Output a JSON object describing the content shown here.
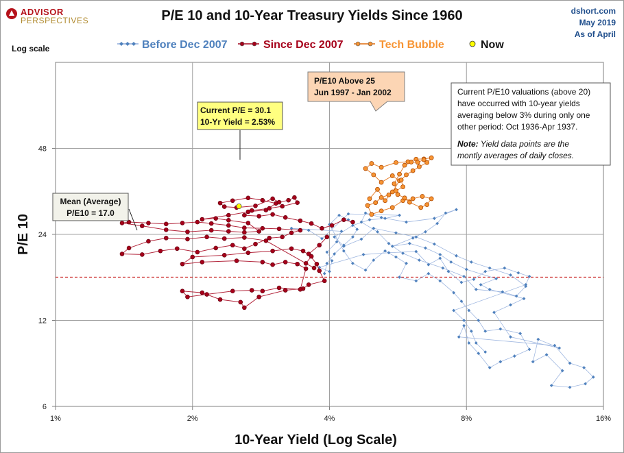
{
  "brand": {
    "line1": "ADVISOR",
    "line2": "PERSPECTIVES"
  },
  "title": "P/E 10 and 10-Year Treasury Yields Since 1960",
  "source": {
    "site": "dshort.com",
    "date": "May 2019",
    "asof": "As of April"
  },
  "scale_note": "Log scale",
  "colors": {
    "before": "#4f81bd",
    "since": "#a6001a",
    "bubble": "#f79433",
    "now": "#ffff00",
    "mean": "#c00000",
    "grid": "#a0a0a0"
  },
  "chart_data": {
    "type": "scatter",
    "title": "P/E 10 and 10-Year Treasury Yields Since 1960",
    "xlabel": "10-Year Yield (Log Scale)",
    "ylabel": "P/E 10",
    "x_scale": "log",
    "y_scale": "log",
    "xlim": [
      1,
      16
    ],
    "ylim": [
      6,
      96
    ],
    "x_ticks": [
      1,
      2,
      4,
      8,
      16
    ],
    "x_tick_labels": [
      "1%",
      "2%",
      "4%",
      "8%",
      "16%"
    ],
    "y_ticks": [
      6,
      12,
      24,
      48
    ],
    "y_tick_labels": [
      "6",
      "12",
      "24",
      "48"
    ],
    "grid": true,
    "legend_position": "top",
    "series": [
      {
        "name": "Before Dec 2007",
        "color": "#4f81bd",
        "marker": "diamond",
        "points": [
          [
            3.9,
            17.5
          ],
          [
            3.95,
            19
          ],
          [
            4.1,
            20.5
          ],
          [
            4.3,
            22
          ],
          [
            4.5,
            23.5
          ],
          [
            4.6,
            25
          ],
          [
            4.4,
            27
          ],
          [
            4.2,
            28
          ],
          [
            4.0,
            26
          ],
          [
            4.3,
            21
          ],
          [
            4.5,
            19
          ],
          [
            4.8,
            18
          ],
          [
            5.0,
            19.5
          ],
          [
            5.3,
            21
          ],
          [
            5.6,
            20
          ],
          [
            5.9,
            19
          ],
          [
            5.7,
            17
          ],
          [
            6.2,
            16.5
          ],
          [
            6.6,
            17.5
          ],
          [
            7.0,
            16.5
          ],
          [
            7.5,
            15
          ],
          [
            7.8,
            14
          ],
          [
            8.1,
            13
          ],
          [
            8.5,
            12
          ],
          [
            8.8,
            11
          ],
          [
            9.5,
            11.2
          ],
          [
            10.5,
            10.8
          ],
          [
            11,
            9.5
          ],
          [
            10.2,
            9
          ],
          [
            9.5,
            8.6
          ],
          [
            9.0,
            8.2
          ],
          [
            8.5,
            9.2
          ],
          [
            8.1,
            10
          ],
          [
            7.9,
            11.5
          ],
          [
            7.7,
            10.5
          ],
          [
            12.5,
            9.8
          ],
          [
            13.5,
            8.5
          ],
          [
            14.5,
            8.2
          ],
          [
            15.2,
            7.6
          ],
          [
            14.6,
            7.2
          ],
          [
            13.5,
            7.0
          ],
          [
            12.3,
            7.1
          ],
          [
            13.0,
            8.0
          ],
          [
            12.0,
            9.1
          ],
          [
            11.2,
            8.6
          ],
          [
            11.5,
            10.3
          ],
          [
            12.8,
            9.6
          ],
          [
            10.0,
            10.5
          ],
          [
            9.2,
            12.8
          ],
          [
            10.0,
            13.6
          ],
          [
            10.7,
            14.3
          ],
          [
            9.0,
            15.4
          ],
          [
            8.6,
            16
          ],
          [
            9.3,
            16.8
          ],
          [
            8.0,
            18.1
          ],
          [
            7.4,
            19.2
          ],
          [
            7.0,
            20.4
          ],
          [
            6.5,
            21.5
          ],
          [
            6.0,
            22.3
          ],
          [
            5.5,
            21.8
          ],
          [
            6.1,
            23.3
          ],
          [
            6.5,
            24.5
          ],
          [
            6.9,
            26.2
          ],
          [
            7.2,
            28.5
          ],
          [
            7.6,
            29.3
          ],
          [
            6.8,
            27.3
          ],
          [
            5.9,
            26.5
          ],
          [
            5.2,
            27.5
          ],
          [
            4.8,
            28.5
          ],
          [
            4.7,
            26.5
          ],
          [
            5.1,
            24.5
          ],
          [
            5.4,
            22.3
          ],
          [
            5.8,
            20.6
          ],
          [
            6.3,
            19.5
          ],
          [
            7.1,
            18.3
          ],
          [
            7.9,
            17.1
          ],
          [
            8.4,
            15.4
          ],
          [
            9.6,
            15.1
          ],
          [
            10.3,
            14.6
          ],
          [
            10.8,
            15.8
          ],
          [
            10.0,
            17.3
          ],
          [
            9.0,
            18.3
          ],
          [
            8.2,
            19.2
          ],
          [
            7.6,
            20.2
          ],
          [
            6.8,
            22.2
          ],
          [
            6.2,
            23.5
          ],
          [
            5.6,
            24.3
          ],
          [
            5.0,
            25.2
          ],
          [
            4.7,
            23.1
          ],
          [
            4.3,
            21.8
          ],
          [
            4.1,
            23.5
          ],
          [
            4.5,
            25.8
          ],
          [
            4.9,
            27.0
          ],
          [
            5.3,
            27.3
          ],
          [
            5.7,
            28.0
          ],
          [
            4.4,
            28.3
          ],
          [
            3.85,
            23.2
          ],
          [
            3.6,
            24.8
          ],
          [
            3.3,
            25.2
          ],
          [
            4.25,
            24.6
          ],
          [
            4.15,
            22.6
          ],
          [
            3.95,
            20.8
          ],
          [
            4.05,
            19.4
          ],
          [
            4.0,
            17.8
          ],
          [
            3.8,
            18.4
          ],
          [
            4.75,
            20.4
          ],
          [
            5.4,
            20.7
          ],
          [
            6.2,
            20.9
          ],
          [
            6.6,
            18.8
          ],
          [
            7.0,
            19.8
          ],
          [
            7.3,
            17.8
          ],
          [
            7.8,
            16.3
          ],
          [
            8.3,
            16.7
          ],
          [
            8.8,
            17.8
          ],
          [
            9.7,
            18.3
          ],
          [
            10.4,
            17.6
          ],
          [
            11.0,
            17.1
          ],
          [
            10.8,
            16.0
          ],
          [
            7.5,
            13.0
          ],
          [
            7.9,
            12.0
          ],
          [
            8.2,
            11.0
          ],
          [
            8.4,
            10.0
          ],
          [
            8.8,
            9.3
          ]
        ]
      },
      {
        "name": "Since Dec 2007",
        "color": "#a6001a",
        "marker": "circle",
        "points": [
          [
            3.95,
            23.5
          ],
          [
            3.8,
            22
          ],
          [
            3.6,
            20.5
          ],
          [
            3.75,
            18.9
          ],
          [
            3.8,
            17.9
          ],
          [
            3.9,
            16.5
          ],
          [
            3.6,
            16.0
          ],
          [
            3.5,
            15.5
          ],
          [
            3.2,
            15.3
          ],
          [
            2.8,
            14.5
          ],
          [
            2.6,
            13.3
          ],
          [
            2.55,
            13.9
          ],
          [
            2.3,
            14.2
          ],
          [
            2.1,
            15.0
          ],
          [
            1.9,
            15.2
          ],
          [
            1.95,
            14.5
          ],
          [
            2.15,
            14.8
          ],
          [
            2.45,
            15.2
          ],
          [
            2.7,
            15.3
          ],
          [
            2.85,
            15.2
          ],
          [
            3.1,
            15.6
          ],
          [
            3.45,
            15.4
          ],
          [
            3.55,
            18.2
          ],
          [
            3.4,
            18.9
          ],
          [
            3.2,
            19.2
          ],
          [
            3.0,
            18.8
          ],
          [
            2.85,
            19.2
          ],
          [
            2.5,
            19.4
          ],
          [
            2.1,
            19.2
          ],
          [
            1.9,
            18.9
          ],
          [
            2.0,
            20.0
          ],
          [
            2.35,
            20.3
          ],
          [
            2.65,
            20.7
          ],
          [
            3.0,
            21.0
          ],
          [
            3.3,
            21.4
          ],
          [
            3.5,
            21.0
          ],
          [
            3.65,
            20.1
          ],
          [
            3.55,
            19.0
          ],
          [
            3.7,
            18.3
          ],
          [
            2.9,
            22.8
          ],
          [
            2.6,
            23.4
          ],
          [
            2.35,
            23.2
          ],
          [
            2.15,
            23.5
          ],
          [
            1.95,
            23.1
          ],
          [
            1.75,
            23.3
          ],
          [
            1.6,
            22.7
          ],
          [
            1.45,
            21.5
          ],
          [
            1.4,
            20.5
          ],
          [
            1.55,
            20.4
          ],
          [
            1.7,
            21.0
          ],
          [
            1.85,
            21.4
          ],
          [
            2.05,
            20.8
          ],
          [
            2.25,
            21.5
          ],
          [
            2.45,
            22.0
          ],
          [
            2.6,
            21.4
          ],
          [
            2.75,
            22.2
          ],
          [
            2.95,
            23.3
          ],
          [
            3.15,
            23.5
          ],
          [
            3.3,
            24.3
          ],
          [
            3.45,
            24.8
          ],
          [
            3.1,
            25.1
          ],
          [
            2.85,
            25.2
          ],
          [
            2.6,
            25.3
          ],
          [
            2.4,
            25.8
          ],
          [
            2.2,
            26.2
          ],
          [
            2.05,
            26.5
          ],
          [
            1.9,
            26.3
          ],
          [
            1.75,
            26.1
          ],
          [
            1.6,
            26.3
          ],
          [
            1.45,
            26.5
          ],
          [
            1.4,
            26.3
          ],
          [
            1.55,
            25.7
          ],
          [
            1.75,
            24.9
          ],
          [
            1.95,
            24.5
          ],
          [
            2.2,
            24.8
          ],
          [
            2.4,
            24.6
          ],
          [
            2.6,
            24.4
          ],
          [
            2.8,
            24.6
          ],
          [
            2.65,
            26.3
          ],
          [
            2.4,
            26.9
          ],
          [
            2.25,
            27.3
          ],
          [
            2.1,
            27.1
          ],
          [
            2.4,
            28.0
          ],
          [
            2.65,
            28.8
          ],
          [
            2.9,
            29.2
          ],
          [
            3.05,
            30.8
          ],
          [
            2.85,
            31.6
          ],
          [
            2.65,
            32.2
          ],
          [
            2.45,
            31.5
          ],
          [
            2.3,
            30.9
          ],
          [
            2.35,
            30.0
          ],
          [
            2.5,
            29.8
          ],
          [
            2.75,
            30.2
          ],
          [
            3.0,
            32.0
          ],
          [
            3.1,
            31.1
          ],
          [
            3.25,
            31.6
          ],
          [
            3.35,
            32.3
          ],
          [
            3.4,
            31.0
          ],
          [
            3.15,
            30.1
          ],
          [
            2.95,
            29.6
          ],
          [
            2.7,
            29.1
          ],
          [
            2.6,
            28.0
          ],
          [
            2.8,
            27.8
          ],
          [
            3.0,
            28.2
          ],
          [
            3.2,
            27.5
          ],
          [
            3.45,
            26.8
          ],
          [
            3.65,
            26.2
          ],
          [
            3.85,
            25.2
          ],
          [
            4.05,
            25.8
          ],
          [
            4.3,
            27.0
          ],
          [
            4.5,
            26.5
          ]
        ]
      },
      {
        "name": "Tech Bubble",
        "color": "#f79433",
        "marker": "circle",
        "points": [
          [
            4.9,
            32.0
          ],
          [
            5.1,
            34.5
          ],
          [
            5.3,
            31.5
          ],
          [
            5.5,
            33.8
          ],
          [
            5.7,
            37.0
          ],
          [
            5.5,
            38.5
          ],
          [
            5.2,
            36.5
          ],
          [
            5.0,
            38.8
          ],
          [
            4.8,
            40.8
          ],
          [
            4.95,
            42.5
          ],
          [
            5.2,
            41.2
          ],
          [
            5.6,
            42.8
          ],
          [
            5.95,
            43.1
          ],
          [
            6.2,
            44.0
          ],
          [
            6.45,
            44.1
          ],
          [
            6.7,
            44.5
          ],
          [
            6.55,
            42.8
          ],
          [
            6.3,
            41.4
          ],
          [
            6.1,
            40.1
          ],
          [
            5.9,
            38.8
          ],
          [
            5.75,
            37.2
          ],
          [
            5.8,
            35.2
          ],
          [
            5.6,
            34.1
          ],
          [
            5.4,
            33.0
          ],
          [
            5.2,
            32.3
          ],
          [
            5.05,
            31.0
          ],
          [
            4.85,
            30.3
          ],
          [
            4.95,
            28.2
          ],
          [
            5.2,
            29.0
          ],
          [
            5.5,
            29.8
          ],
          [
            5.8,
            31.5
          ],
          [
            6.1,
            32.0
          ],
          [
            6.4,
            32.6
          ],
          [
            6.7,
            32.0
          ],
          [
            6.55,
            30.5
          ],
          [
            6.35,
            29.8
          ],
          [
            6.0,
            31.1
          ],
          [
            5.85,
            32.2
          ],
          [
            5.65,
            33.1
          ],
          [
            5.55,
            36.1
          ],
          [
            5.7,
            39.0
          ],
          [
            5.85,
            41.9
          ],
          [
            6.05,
            43.0
          ],
          [
            6.25,
            42.9
          ],
          [
            6.45,
            43.8
          ]
        ]
      },
      {
        "name": "Now",
        "color": "#ffff00",
        "marker": "circle",
        "points": [
          [
            2.53,
            30.1
          ]
        ]
      }
    ],
    "reference_lines": [
      {
        "name": "Mean (Average)",
        "y": 17.0,
        "style": "dashed"
      }
    ],
    "annotations": {
      "current": [
        "Current P/E = 30.1",
        "10-Yr Yield = 2.53%"
      ],
      "mean": [
        "Mean (Average)",
        "P/E10 = 17.0"
      ],
      "bubble": [
        "P/E10 Above 25",
        "Jun 1997  - Jan 2002"
      ],
      "note": [
        "Current P/E10 valuations  (above 20)",
        "have occurred with 10-year yields",
        "averaging below 3% during only one",
        "other period: Oct 1936-Apr 1937."
      ],
      "note_italic_bold": "Note:",
      "note_italic": [
        "Yield data points are the",
        "montly averages of daily closes."
      ]
    }
  }
}
